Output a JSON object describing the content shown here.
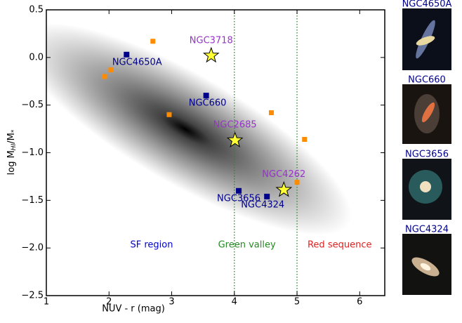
{
  "chart_data": {
    "type": "scatter",
    "xlabel": "NUV - r (mag)",
    "ylabel": {
      "base": "log M",
      "sub1": "HI",
      "mid": "/M",
      "sub2": "*"
    },
    "xlim": [
      1,
      6.4
    ],
    "ylim": [
      -2.5,
      0.5
    ],
    "xticks": [
      1,
      2,
      3,
      4,
      5,
      6
    ],
    "yticks": [
      {
        "value": 0.5,
        "label": "0.5"
      },
      {
        "value": 0,
        "label": "0.0"
      },
      {
        "value": -0.5,
        "label": "−0.5"
      },
      {
        "value": -1,
        "label": "−1.0"
      },
      {
        "value": -1.5,
        "label": "−1.5"
      },
      {
        "value": -2,
        "label": "−2.0"
      },
      {
        "value": -2.5,
        "label": "−2.5"
      }
    ],
    "squares": {
      "color": "#00008b",
      "labels": [
        "NGC4650A",
        "NGC660",
        "NGC3656",
        "NGC4324"
      ],
      "x": [
        2.28,
        3.55,
        4.07,
        4.52
      ],
      "y": [
        0.03,
        -0.4,
        -1.4,
        -1.46
      ]
    },
    "stars": {
      "color": "#ffff33",
      "label_color": "#9932cc",
      "labels": [
        "NGC3718",
        "NGC2685",
        "NGC4262"
      ],
      "x": [
        3.63,
        4.01,
        4.79
      ],
      "y": [
        0.02,
        -0.87,
        -1.39
      ]
    },
    "comparison": {
      "color": "#ff8c00",
      "x": [
        2.7,
        1.93,
        2.03,
        2.96,
        4.59,
        5.12,
        5.0
      ],
      "y": [
        0.17,
        -0.2,
        -0.13,
        -0.6,
        -0.58,
        -0.86,
        -1.31
      ]
    },
    "vlines": {
      "color": "#228b22",
      "x": [
        4,
        5
      ]
    },
    "regions": [
      {
        "text": "SF region",
        "color": "#0000cd"
      },
      {
        "text": "Green valley",
        "color": "#228b22"
      },
      {
        "text": "Red sequence",
        "color": "#e02020"
      }
    ],
    "thumbnails": [
      "NGC4650A",
      "NGC660",
      "NGC3656",
      "NGC4324"
    ]
  }
}
